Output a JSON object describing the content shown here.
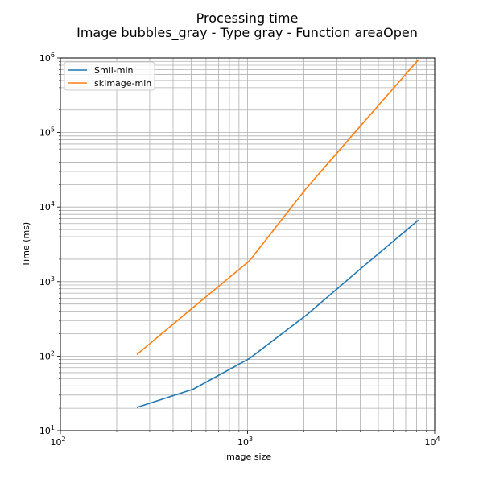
{
  "chart_data": {
    "type": "line",
    "title": "Processing time",
    "subtitle": "Image bubbles_gray - Type gray - Function areaOpen",
    "xlabel": "Image size",
    "ylabel": "Time (ms)",
    "xscale": "log",
    "yscale": "log",
    "xlim": [
      100,
      10000
    ],
    "ylim": [
      10,
      1000000
    ],
    "xticks": [
      {
        "value": 100,
        "base": "10",
        "exp": "2"
      },
      {
        "value": 1000,
        "base": "10",
        "exp": "3"
      },
      {
        "value": 10000,
        "base": "10",
        "exp": "4"
      }
    ],
    "yticks": [
      {
        "value": 10,
        "base": "10",
        "exp": "1"
      },
      {
        "value": 100,
        "base": "10",
        "exp": "2"
      },
      {
        "value": 1000,
        "base": "10",
        "exp": "3"
      },
      {
        "value": 10000,
        "base": "10",
        "exp": "4"
      },
      {
        "value": 100000,
        "base": "10",
        "exp": "5"
      },
      {
        "value": 1000000,
        "base": "10",
        "exp": "6"
      }
    ],
    "grid": true,
    "legend_position": "top-left",
    "series": [
      {
        "name": "Smil-min",
        "color": "#1f77b4",
        "x": [
          256,
          512,
          1024,
          2048,
          4096,
          8192
        ],
        "y": [
          20.5,
          36,
          93,
          350,
          1550,
          6700
        ]
      },
      {
        "name": "skImage-min",
        "color": "#ff7f0e",
        "x": [
          256,
          512,
          1024,
          2048,
          4096,
          8192
        ],
        "y": [
          105,
          450,
          1900,
          17500,
          130000,
          950000
        ]
      }
    ]
  }
}
